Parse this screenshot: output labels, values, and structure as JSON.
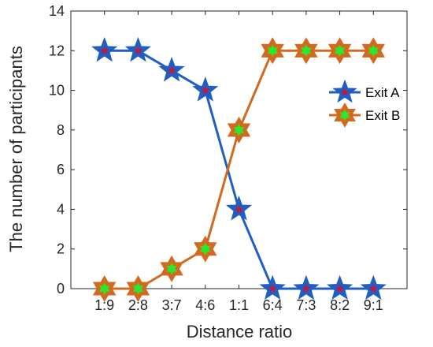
{
  "chart_data": {
    "type": "line",
    "xlabel": "Distance ratio",
    "ylabel": "The number of participants",
    "categories": [
      "1:9",
      "2:8",
      "3:7",
      "4:6",
      "1:1",
      "6:4",
      "7:3",
      "8:2",
      "9:1"
    ],
    "ylim": [
      0,
      14
    ],
    "yticks": [
      0,
      2,
      4,
      6,
      8,
      10,
      12,
      14
    ],
    "grid": false,
    "legend_position": "right",
    "series": [
      {
        "name": "Exit A",
        "values": [
          12,
          12,
          11,
          10,
          4,
          0,
          0,
          0,
          0
        ],
        "line_color": "#1f5fc4",
        "marker": "five-point-star",
        "marker_fill": "#1f5fc4",
        "marker_center": "#c0183f"
      },
      {
        "name": "Exit B",
        "values": [
          0,
          0,
          1,
          2,
          8,
          12,
          12,
          12,
          12
        ],
        "line_color": "#d2691e",
        "marker": "six-point-star",
        "marker_fill": "#d2691e",
        "marker_center": "#2ee62e"
      }
    ]
  }
}
